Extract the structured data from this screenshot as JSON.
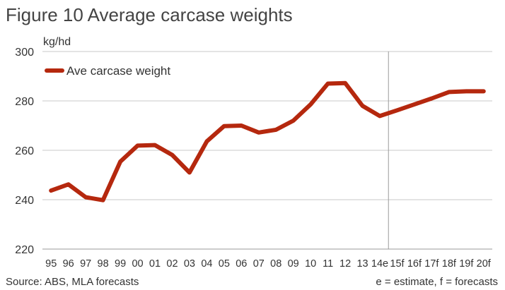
{
  "chart_data": {
    "type": "line",
    "title": "Figure 10 Average carcase weights",
    "ylabel": "kg/hd",
    "ylim": [
      220,
      300
    ],
    "yticks": [
      220,
      240,
      260,
      280,
      300
    ],
    "grid": true,
    "legend_position": "top-left",
    "categories": [
      "95",
      "96",
      "97",
      "98",
      "99",
      "00",
      "01",
      "02",
      "03",
      "04",
      "05",
      "06",
      "07",
      "08",
      "09",
      "10",
      "11",
      "12",
      "13",
      "14e",
      "15f",
      "16f",
      "17f",
      "18f",
      "19f",
      "20f"
    ],
    "series": [
      {
        "name": "Ave carcase weight",
        "color": "#b5280e",
        "values": [
          243.7,
          246.2,
          241.0,
          239.8,
          255.4,
          261.9,
          262.1,
          258.1,
          251.0,
          263.6,
          269.8,
          270.0,
          267.2,
          268.3,
          272.0,
          278.6,
          287.0,
          287.2,
          278.0,
          273.9,
          276.2,
          278.6,
          281.0,
          283.6,
          283.9,
          283.9
        ]
      }
    ],
    "divider_after_category": "14e",
    "source": "Source: ABS, MLA forecasts",
    "note": "e = estimate, f = forecasts"
  }
}
